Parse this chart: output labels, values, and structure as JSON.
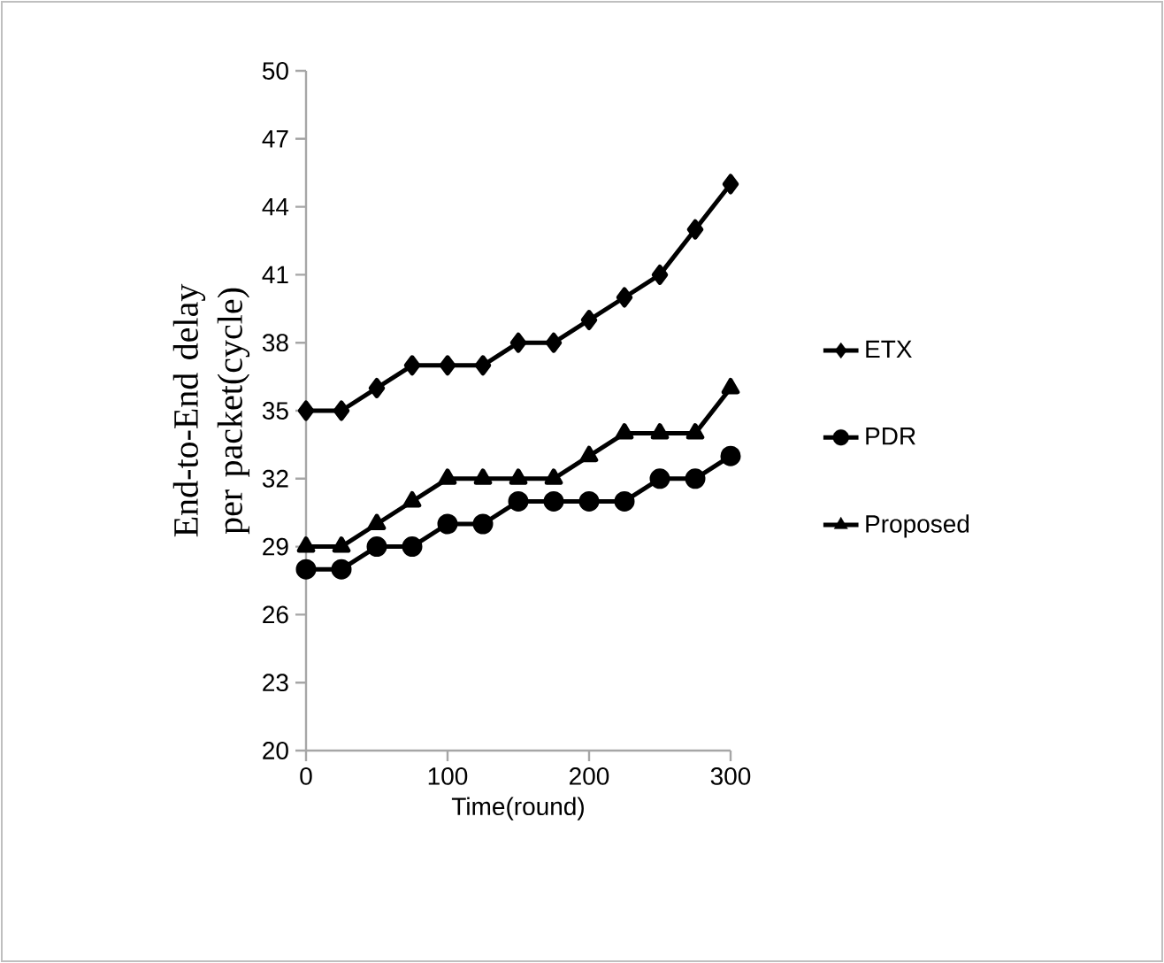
{
  "chart_data": {
    "type": "line",
    "xlabel": "Time(round)",
    "ylabel": "End-to-End delay per packet(cycle)",
    "x": [
      0,
      25,
      50,
      75,
      100,
      125,
      150,
      175,
      200,
      225,
      250,
      275,
      300
    ],
    "series": [
      {
        "name": "ETX",
        "color": "#000000",
        "marker": "diamond",
        "values": [
          35,
          35,
          36,
          37,
          37,
          37,
          38,
          38,
          39,
          40,
          41,
          43,
          45
        ]
      },
      {
        "name": "PDR",
        "color": "#000000",
        "marker": "circle",
        "values": [
          28,
          28,
          29,
          29,
          30,
          30,
          31,
          31,
          31,
          31,
          32,
          32,
          33
        ]
      },
      {
        "name": "Proposed",
        "color": "#000000",
        "marker": "triangle",
        "values": [
          29,
          29,
          30,
          31,
          32,
          32,
          32,
          32,
          33,
          34,
          34,
          34,
          36
        ]
      }
    ],
    "xlim": [
      0,
      300
    ],
    "ylim": [
      20,
      50
    ],
    "xticks": [
      0,
      100,
      200,
      300
    ],
    "yticks": [
      20,
      23,
      26,
      29,
      32,
      35,
      38,
      41,
      44,
      47,
      50
    ],
    "legend": "right",
    "line_style": "solid"
  }
}
